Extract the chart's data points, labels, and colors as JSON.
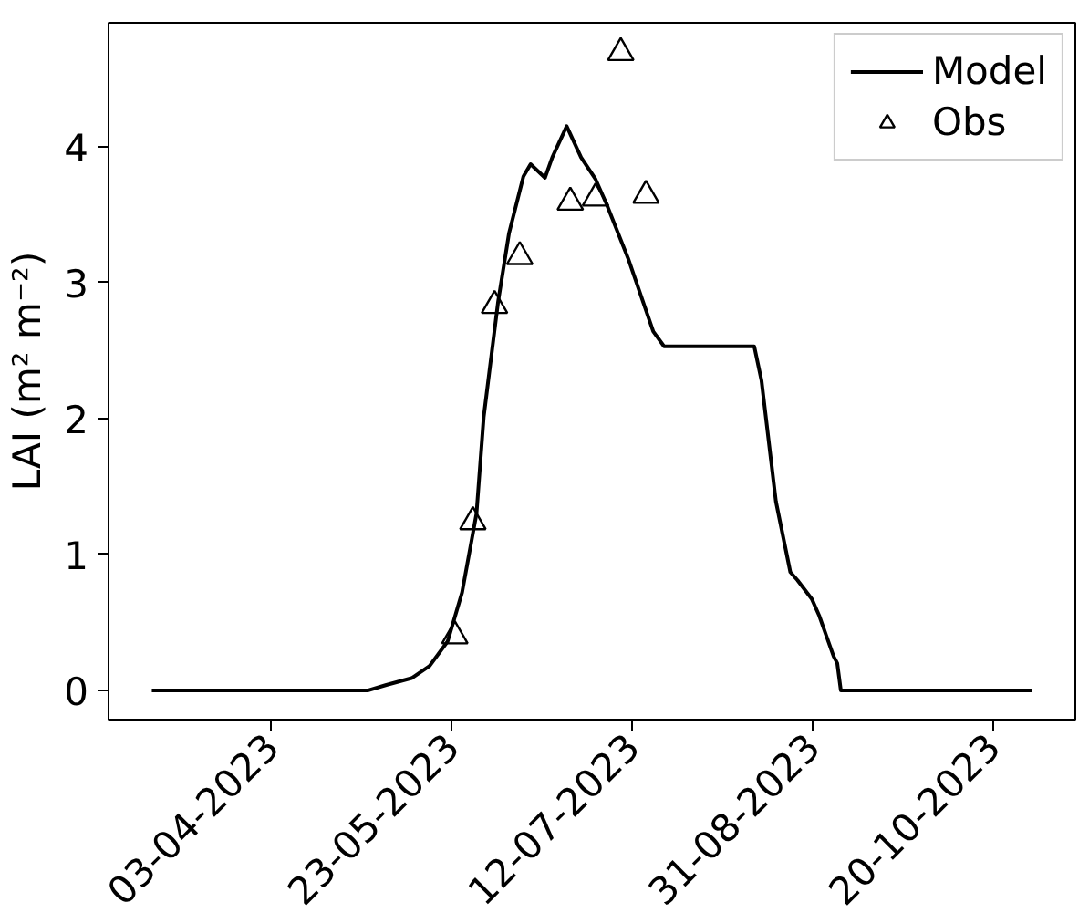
{
  "chart_data": {
    "type": "line",
    "ylabel": "LAI (m² m⁻²)",
    "xlim": [
      "2023-02-17",
      "2023-11-12"
    ],
    "ylim": [
      -0.215,
      4.91
    ],
    "xticks": [
      {
        "value": "2023-04-03",
        "label": "03-04-2023"
      },
      {
        "value": "2023-05-23",
        "label": "23-05-2023"
      },
      {
        "value": "2023-07-12",
        "label": "12-07-2023"
      },
      {
        "value": "2023-08-31",
        "label": "31-08-2023"
      },
      {
        "value": "2023-10-20",
        "label": "20-10-2023"
      }
    ],
    "yticks": [
      0,
      1,
      2,
      3,
      4
    ],
    "grid": false,
    "legend": "top right",
    "series": [
      {
        "name": "Model",
        "color": "#000000",
        "line_style": "solid",
        "x": [
          "2023-03-01",
          "2023-04-30",
          "2023-05-05",
          "2023-05-12",
          "2023-05-17",
          "2023-05-22",
          "2023-05-26",
          "2023-05-30",
          "2023-06-01",
          "2023-06-05",
          "2023-06-08",
          "2023-06-12",
          "2023-06-14",
          "2023-06-18",
          "2023-06-20",
          "2023-06-24",
          "2023-06-28",
          "2023-07-02",
          "2023-07-05",
          "2023-07-11",
          "2023-07-18",
          "2023-07-21",
          "2023-08-15",
          "2023-08-17",
          "2023-08-21",
          "2023-08-25",
          "2023-08-27",
          "2023-08-31",
          "2023-09-02",
          "2023-09-04",
          "2023-09-06",
          "2023-09-07",
          "2023-09-08",
          "2023-10-31"
        ],
        "values": [
          0,
          0,
          0.04,
          0.09,
          0.18,
          0.36,
          0.72,
          1.3,
          2.01,
          2.86,
          3.36,
          3.78,
          3.87,
          3.77,
          3.92,
          4.15,
          3.92,
          3.76,
          3.58,
          3.18,
          2.64,
          2.53,
          2.53,
          2.28,
          1.39,
          0.87,
          0.81,
          0.67,
          0.55,
          0.4,
          0.25,
          0.2,
          0,
          0
        ]
      },
      {
        "name": "Obs",
        "type": "scatter",
        "color": "#000000",
        "marker": "triangle",
        "x": [
          "2023-05-24",
          "2023-05-29",
          "2023-06-04",
          "2023-06-11",
          "2023-06-25",
          "2023-07-02",
          "2023-07-09",
          "2023-07-16"
        ],
        "values": [
          0.4,
          1.24,
          2.83,
          3.19,
          3.59,
          3.62,
          4.69,
          3.64
        ]
      }
    ]
  }
}
